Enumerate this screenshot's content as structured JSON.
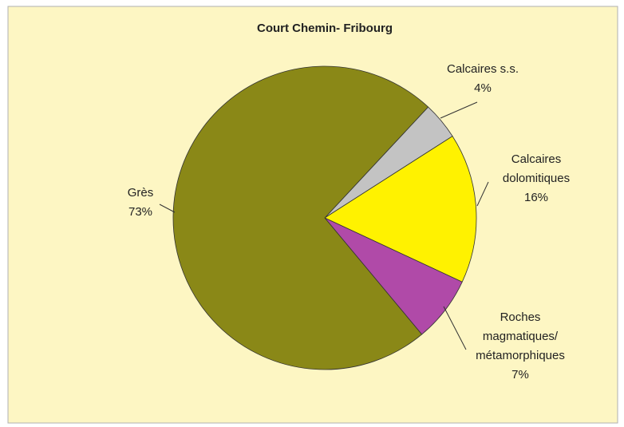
{
  "chart_data": {
    "type": "pie",
    "title": "Court Chemin- Fribourg",
    "categories": [
      "Calcaires s.s.",
      "Calcaires dolomitiques",
      "Roches magmatiques/ métamorphiques",
      "Grès"
    ],
    "values": [
      4,
      16,
      7,
      73
    ],
    "value_labels": [
      "4%",
      "16%",
      "7%",
      "73%"
    ],
    "colors": [
      "#c3c3c3",
      "#fff200",
      "#b04aa8",
      "#8a8817"
    ]
  }
}
